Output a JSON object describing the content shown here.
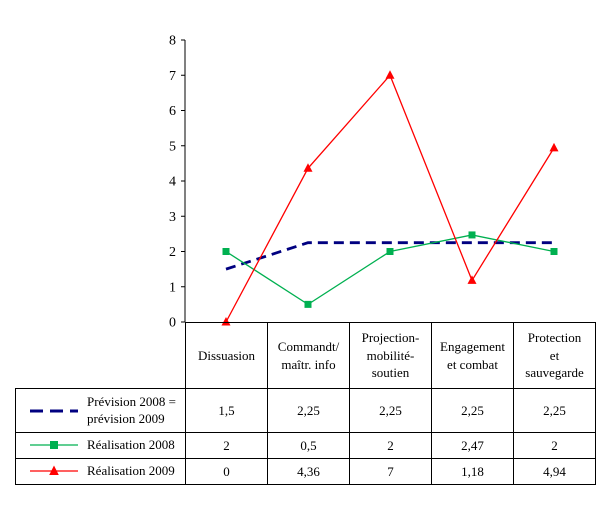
{
  "chart_data": {
    "type": "line",
    "title": "",
    "xlabel": "",
    "ylabel": "",
    "ylim": [
      0,
      8
    ],
    "yticks": [
      0,
      1,
      2,
      3,
      4,
      5,
      6,
      7,
      8
    ],
    "grid": false,
    "legend_position": "table-left",
    "categories": [
      "Dissuasion",
      "Commandt/\nmaîtr. info",
      "Projection-\nmobilité-\nsoutien",
      "Engagement\net combat",
      "Protection\net\nsauvegarde"
    ],
    "series": [
      {
        "name": "Prévision 2008 =\nprévision 2009",
        "values": [
          1.5,
          2.25,
          2.25,
          2.25,
          2.25
        ],
        "labels": [
          "1,5",
          "2,25",
          "2,25",
          "2,25",
          "2,25"
        ],
        "color": "#000080",
        "dash": true,
        "marker": "none"
      },
      {
        "name": "Réalisation 2008",
        "values": [
          2,
          0.5,
          2,
          2.47,
          2
        ],
        "labels": [
          "2",
          "0,5",
          "2",
          "2,47",
          "2"
        ],
        "color": "#00B050",
        "dash": false,
        "marker": "square"
      },
      {
        "name": "Réalisation 2009",
        "values": [
          0,
          4.36,
          7,
          1.18,
          4.94
        ],
        "labels": [
          "0",
          "4,36",
          "7",
          "1,18",
          "4,94"
        ],
        "color": "#FF0000",
        "dash": false,
        "marker": "triangle"
      }
    ]
  }
}
